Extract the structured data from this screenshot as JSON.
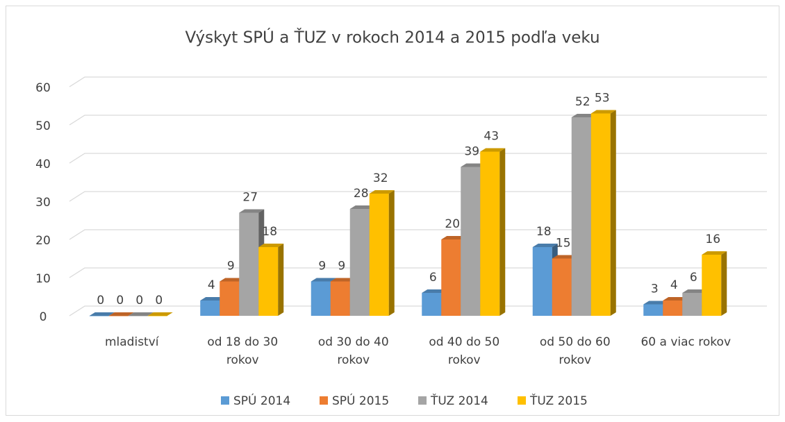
{
  "chart_data": {
    "type": "bar3d",
    "title": "Výskyt SPÚ a ŤUZ v rokoch 2014 a 2015 podľa veku",
    "categories": [
      "mladiství",
      "od 18 do 30 rokov",
      "od 30 do 40 rokov",
      "od 40 do 50 rokov",
      "od 50 do 60 rokov",
      "60 a viac rokov"
    ],
    "series": [
      {
        "name": "SPÚ 2014",
        "color": "#5b9bd5",
        "values": [
          0,
          4,
          9,
          6,
          18,
          3
        ]
      },
      {
        "name": "SPÚ 2015",
        "color": "#ed7d31",
        "values": [
          0,
          9,
          9,
          20,
          15,
          4
        ]
      },
      {
        "name": "ŤUZ 2014",
        "color": "#a5a5a5",
        "values": [
          0,
          27,
          28,
          39,
          52,
          6
        ]
      },
      {
        "name": "ŤUZ 2015",
        "color": "#ffc000",
        "values": [
          0,
          18,
          32,
          43,
          53,
          16
        ]
      }
    ],
    "ylim": [
      0,
      60
    ],
    "yticks": [
      0,
      10,
      20,
      30,
      40,
      50,
      60
    ],
    "grid": true,
    "legend": "bottom"
  }
}
